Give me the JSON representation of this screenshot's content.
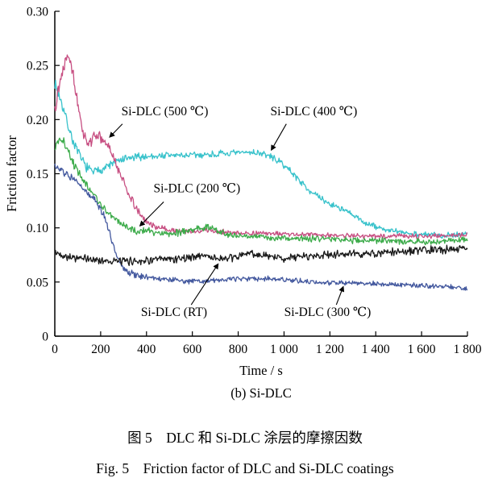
{
  "captions": {
    "subplot": "(b) Si-DLC",
    "zh": "图 5　DLC 和 Si-DLC 涂层的摩擦因数",
    "en": "Fig. 5　Friction factor of DLC and Si-DLC coatings"
  },
  "chart_data": {
    "type": "line",
    "title": "",
    "xlabel": "Time / s",
    "ylabel": "Friction factor",
    "xlim": [
      0,
      1800
    ],
    "ylim": [
      0,
      0.3
    ],
    "xticks": [
      0,
      200,
      400,
      600,
      800,
      1000,
      1200,
      1400,
      1600,
      1800
    ],
    "xtick_labels": [
      "0",
      "200",
      "400",
      "600",
      "800",
      "1 000",
      "1 200",
      "1 400",
      "1 600",
      "1 800"
    ],
    "yticks": [
      0,
      0.05,
      0.1,
      0.15,
      0.2,
      0.25,
      0.3
    ],
    "ytick_labels": [
      "0",
      "0.05",
      "0.10",
      "0.15",
      "0.20",
      "0.25",
      "0.30"
    ],
    "grid": false,
    "legend_position": "none",
    "axis_color": "#000000",
    "series": [
      {
        "name": "Si-DLC (400 ℃)",
        "color": "#38c2cb",
        "seed": 7,
        "noise_start": 0.006,
        "noise_end": 0.0032,
        "noise_tau": 500,
        "points": [
          [
            0,
            0.234
          ],
          [
            20,
            0.222
          ],
          [
            40,
            0.208
          ],
          [
            60,
            0.193
          ],
          [
            80,
            0.18
          ],
          [
            100,
            0.17
          ],
          [
            120,
            0.162
          ],
          [
            140,
            0.156
          ],
          [
            160,
            0.152
          ],
          [
            180,
            0.152
          ],
          [
            200,
            0.154
          ],
          [
            230,
            0.157
          ],
          [
            260,
            0.16
          ],
          [
            300,
            0.163
          ],
          [
            350,
            0.165
          ],
          [
            400,
            0.166
          ],
          [
            500,
            0.167
          ],
          [
            600,
            0.167
          ],
          [
            700,
            0.168
          ],
          [
            800,
            0.169
          ],
          [
            850,
            0.17
          ],
          [
            900,
            0.169
          ],
          [
            950,
            0.165
          ],
          [
            1000,
            0.158
          ],
          [
            1040,
            0.15
          ],
          [
            1080,
            0.141
          ],
          [
            1120,
            0.133
          ],
          [
            1160,
            0.127
          ],
          [
            1200,
            0.122
          ],
          [
            1240,
            0.119
          ],
          [
            1280,
            0.114
          ],
          [
            1320,
            0.109
          ],
          [
            1360,
            0.104
          ],
          [
            1400,
            0.101
          ],
          [
            1450,
            0.098
          ],
          [
            1500,
            0.096
          ],
          [
            1600,
            0.094
          ],
          [
            1700,
            0.093
          ],
          [
            1800,
            0.095
          ]
        ]
      },
      {
        "name": "Si-DLC (500 ℃)",
        "color": "#c74f82",
        "seed": 13,
        "noise_start": 0.009,
        "noise_end": 0.0025,
        "noise_tau": 250,
        "points": [
          [
            0,
            0.213
          ],
          [
            20,
            0.232
          ],
          [
            40,
            0.252
          ],
          [
            60,
            0.263
          ],
          [
            75,
            0.248
          ],
          [
            90,
            0.228
          ],
          [
            105,
            0.205
          ],
          [
            120,
            0.192
          ],
          [
            135,
            0.181
          ],
          [
            150,
            0.178
          ],
          [
            165,
            0.182
          ],
          [
            180,
            0.187
          ],
          [
            195,
            0.184
          ],
          [
            210,
            0.18
          ],
          [
            225,
            0.177
          ],
          [
            240,
            0.173
          ],
          [
            255,
            0.165
          ],
          [
            270,
            0.157
          ],
          [
            285,
            0.15
          ],
          [
            300,
            0.143
          ],
          [
            320,
            0.133
          ],
          [
            340,
            0.124
          ],
          [
            360,
            0.116
          ],
          [
            380,
            0.11
          ],
          [
            400,
            0.106
          ],
          [
            430,
            0.102
          ],
          [
            460,
            0.1
          ],
          [
            500,
            0.098
          ],
          [
            550,
            0.097
          ],
          [
            600,
            0.096
          ],
          [
            650,
            0.098
          ],
          [
            700,
            0.097
          ],
          [
            750,
            0.096
          ],
          [
            800,
            0.095
          ],
          [
            900,
            0.095
          ],
          [
            1000,
            0.094
          ],
          [
            1100,
            0.094
          ],
          [
            1200,
            0.093
          ],
          [
            1300,
            0.093
          ],
          [
            1400,
            0.092
          ],
          [
            1500,
            0.093
          ],
          [
            1600,
            0.092
          ],
          [
            1700,
            0.093
          ],
          [
            1800,
            0.094
          ]
        ]
      },
      {
        "name": "Si-DLC (200 ℃)",
        "color": "#3cab4a",
        "seed": 21,
        "noise_start": 0.006,
        "noise_end": 0.0035,
        "noise_tau": 300,
        "points": [
          [
            0,
            0.173
          ],
          [
            20,
            0.183
          ],
          [
            40,
            0.179
          ],
          [
            60,
            0.169
          ],
          [
            80,
            0.161
          ],
          [
            100,
            0.153
          ],
          [
            125,
            0.144
          ],
          [
            150,
            0.136
          ],
          [
            175,
            0.129
          ],
          [
            200,
            0.122
          ],
          [
            230,
            0.114
          ],
          [
            260,
            0.108
          ],
          [
            290,
            0.103
          ],
          [
            320,
            0.1
          ],
          [
            350,
            0.098
          ],
          [
            400,
            0.097
          ],
          [
            450,
            0.096
          ],
          [
            500,
            0.095
          ],
          [
            550,
            0.096
          ],
          [
            600,
            0.098
          ],
          [
            640,
            0.1
          ],
          [
            670,
            0.101
          ],
          [
            700,
            0.098
          ],
          [
            740,
            0.095
          ],
          [
            780,
            0.093
          ],
          [
            850,
            0.092
          ],
          [
            950,
            0.091
          ],
          [
            1050,
            0.09
          ],
          [
            1150,
            0.09
          ],
          [
            1250,
            0.089
          ],
          [
            1350,
            0.088
          ],
          [
            1450,
            0.088
          ],
          [
            1550,
            0.087
          ],
          [
            1650,
            0.087
          ],
          [
            1800,
            0.089
          ]
        ]
      },
      {
        "name": "Si-DLC (300 ℃)",
        "color": "#43589e",
        "seed": 31,
        "noise_start": 0.0045,
        "noise_end": 0.0028,
        "noise_tau": 400,
        "points": [
          [
            0,
            0.157
          ],
          [
            30,
            0.152
          ],
          [
            60,
            0.148
          ],
          [
            100,
            0.141
          ],
          [
            140,
            0.133
          ],
          [
            175,
            0.126
          ],
          [
            200,
            0.118
          ],
          [
            220,
            0.108
          ],
          [
            240,
            0.095
          ],
          [
            260,
            0.081
          ],
          [
            280,
            0.07
          ],
          [
            300,
            0.063
          ],
          [
            320,
            0.059
          ],
          [
            350,
            0.057
          ],
          [
            390,
            0.055
          ],
          [
            430,
            0.054
          ],
          [
            470,
            0.053
          ],
          [
            520,
            0.052
          ],
          [
            580,
            0.051
          ],
          [
            650,
            0.051
          ],
          [
            720,
            0.052
          ],
          [
            800,
            0.053
          ],
          [
            900,
            0.053
          ],
          [
            1000,
            0.052
          ],
          [
            1100,
            0.05
          ],
          [
            1200,
            0.049
          ],
          [
            1320,
            0.049
          ],
          [
            1440,
            0.048
          ],
          [
            1560,
            0.047
          ],
          [
            1680,
            0.046
          ],
          [
            1760,
            0.045
          ],
          [
            1800,
            0.043
          ]
        ]
      },
      {
        "name": "Si-DLC (RT)",
        "color": "#1a1a1a",
        "seed": 42,
        "noise_start": 0.0045,
        "noise_end": 0.0045,
        "noise_tau": 1,
        "points": [
          [
            0,
            0.077
          ],
          [
            50,
            0.074
          ],
          [
            100,
            0.072
          ],
          [
            150,
            0.071
          ],
          [
            200,
            0.07
          ],
          [
            300,
            0.069
          ],
          [
            400,
            0.07
          ],
          [
            500,
            0.071
          ],
          [
            600,
            0.073
          ],
          [
            650,
            0.075
          ],
          [
            700,
            0.072
          ],
          [
            760,
            0.071
          ],
          [
            820,
            0.075
          ],
          [
            860,
            0.077
          ],
          [
            900,
            0.074
          ],
          [
            1000,
            0.072
          ],
          [
            1100,
            0.074
          ],
          [
            1200,
            0.075
          ],
          [
            1300,
            0.076
          ],
          [
            1400,
            0.076
          ],
          [
            1500,
            0.078
          ],
          [
            1600,
            0.079
          ],
          [
            1700,
            0.08
          ],
          [
            1800,
            0.082
          ]
        ]
      }
    ],
    "annotations": [
      {
        "label": "Si-DLC (500 ℃)",
        "text_xy": [
          480,
          0.204
        ],
        "arrow_from": [
          295,
          0.196
        ],
        "arrow_to": [
          240,
          0.184
        ]
      },
      {
        "label": "Si-DLC (400 ℃)",
        "text_xy": [
          1130,
          0.204
        ],
        "arrow_from": [
          1010,
          0.196
        ],
        "arrow_to": [
          945,
          0.172
        ]
      },
      {
        "label": "Si-DLC (200 ℃)",
        "text_xy": [
          620,
          0.133
        ],
        "arrow_from": [
          475,
          0.124
        ],
        "arrow_to": [
          372,
          0.102
        ]
      },
      {
        "label": "Si-DLC (RT)",
        "text_xy": [
          520,
          0.0185
        ],
        "arrow_from": [
          595,
          0.029
        ],
        "arrow_to": [
          712,
          0.0665
        ]
      },
      {
        "label": "Si-DLC (300 ℃)",
        "text_xy": [
          1190,
          0.0185
        ],
        "arrow_from": [
          1228,
          0.029
        ],
        "arrow_to": [
          1258,
          0.0455
        ]
      }
    ]
  }
}
